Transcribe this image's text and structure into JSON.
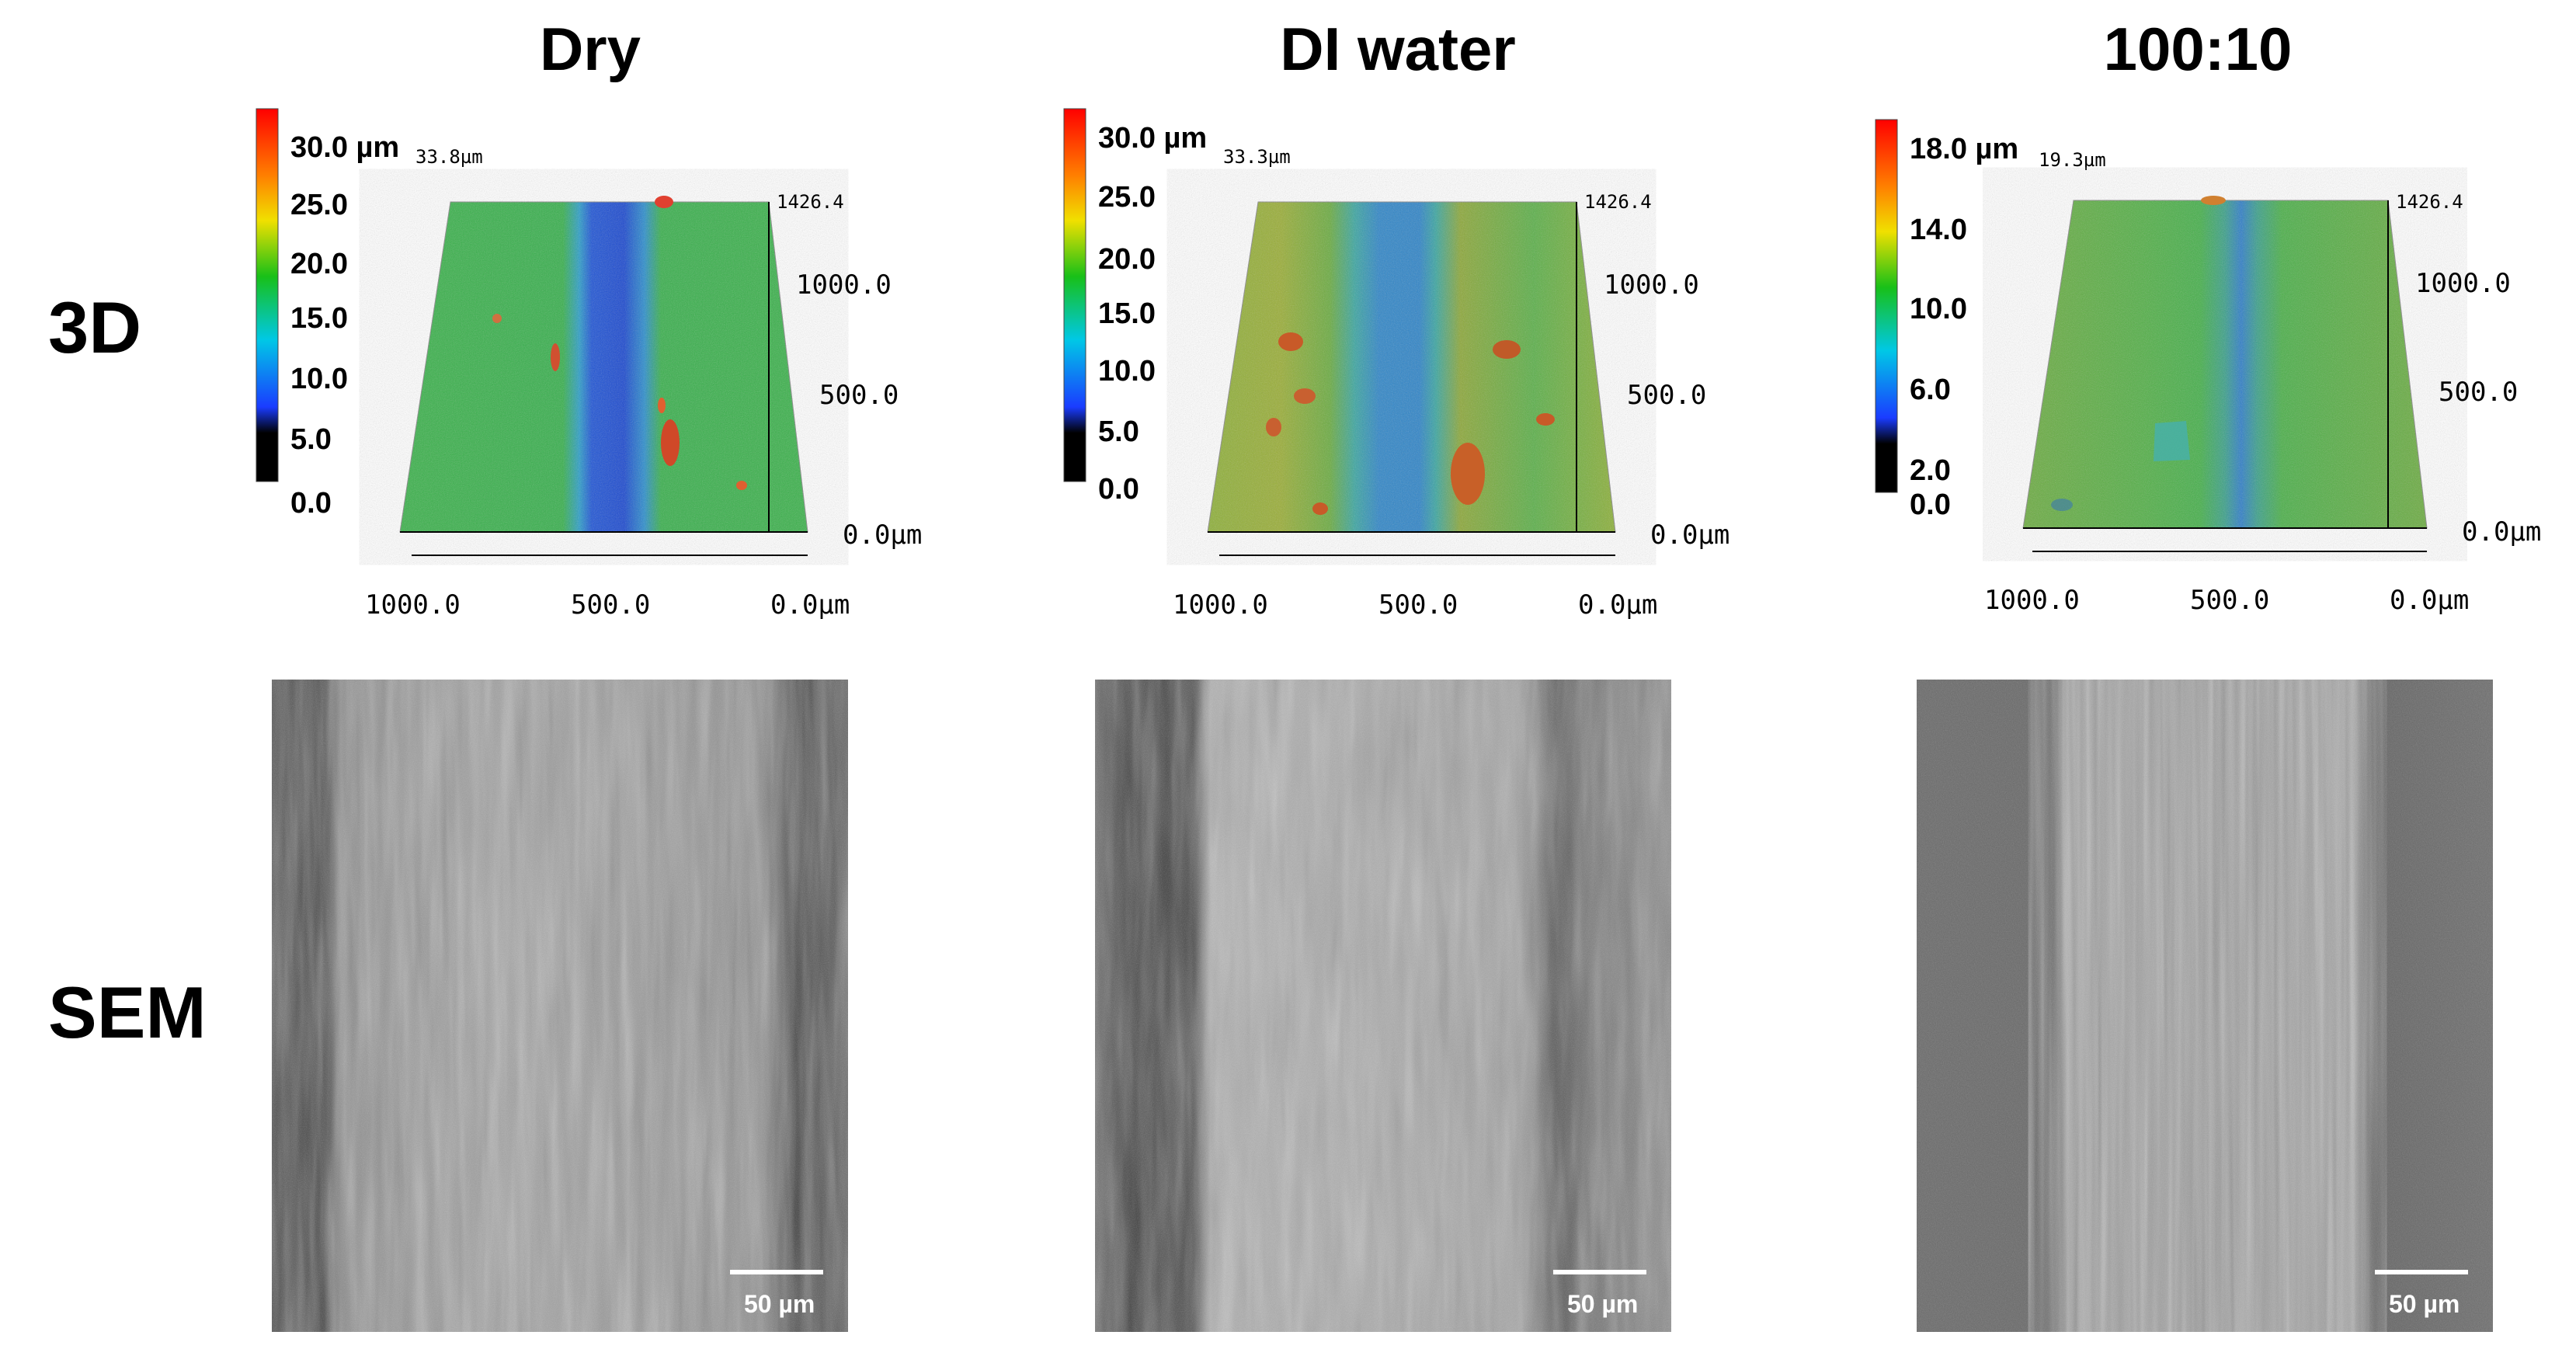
{
  "columns": [
    {
      "title": "Dry",
      "colorbar": {
        "top_label": "30.0 µm",
        "ticks": [
          "25.0",
          "20.0",
          "15.0",
          "10.0",
          "5.0",
          "0.0"
        ]
      },
      "z_max_label": "33.8µm",
      "y_axis": [
        "1426.4",
        "1000.0",
        "500.0",
        "0.0µm"
      ],
      "x_axis": [
        "1000.0",
        "500.0",
        "0.0µm"
      ],
      "scale_bar": "50 µm"
    },
    {
      "title": "DI water",
      "colorbar": {
        "top_label": "30.0 µm",
        "ticks": [
          "25.0",
          "20.0",
          "15.0",
          "10.0",
          "5.0",
          "0.0"
        ]
      },
      "z_max_label": "33.3µm",
      "y_axis": [
        "1426.4",
        "1000.0",
        "500.0",
        "0.0µm"
      ],
      "x_axis": [
        "1000.0",
        "500.0",
        "0.0µm"
      ],
      "scale_bar": "50 µm"
    },
    {
      "title": "100:10",
      "colorbar": {
        "top_label": "18.0 µm",
        "ticks": [
          "14.0",
          "10.0",
          "6.0",
          "2.0",
          "0.0"
        ]
      },
      "z_max_label": "19.3µm",
      "y_axis": [
        "1426.4",
        "1000.0",
        "500.0",
        "0.0µm"
      ],
      "x_axis": [
        "1000.0",
        "500.0",
        "0.0µm"
      ],
      "scale_bar": "50 µm"
    }
  ],
  "rows": {
    "top": "3D",
    "bottom": "SEM"
  },
  "colors": {
    "colorbar_stops": [
      "#000000",
      "#1a3cff",
      "#00c8e6",
      "#18c018",
      "#f0e000",
      "#ff8000",
      "#ff0000"
    ]
  }
}
